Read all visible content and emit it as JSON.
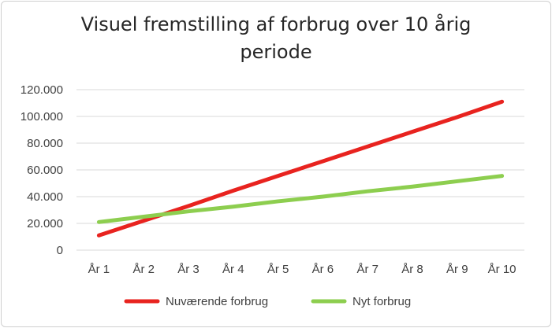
{
  "chart_data": {
    "type": "line",
    "title_line1": "Visuel fremstilling af forbrug over 10 årig",
    "title_line2": "periode",
    "categories": [
      "År 1",
      "År 2",
      "År 3",
      "År 4",
      "År 5",
      "År 6",
      "År 7",
      "År 8",
      "År 9",
      "År 10"
    ],
    "y_ticks": [
      0,
      20000,
      40000,
      60000,
      80000,
      100000,
      120000
    ],
    "y_tick_labels": [
      "0",
      "20.000",
      "40.000",
      "60.000",
      "80.000",
      "100.000",
      "120.000"
    ],
    "ylim": [
      0,
      120000
    ],
    "grid": "horizontal",
    "legend_position": "bottom",
    "series": [
      {
        "name": "Nuværende forbrug",
        "color": "#e8231f",
        "values": [
          11000,
          22000,
          33000,
          44500,
          55500,
          66500,
          77500,
          88500,
          99500,
          111000
        ]
      },
      {
        "name": "Nyt forbrug",
        "color": "#8dce4f",
        "values": [
          21000,
          25000,
          29000,
          32500,
          36500,
          40000,
          44000,
          47500,
          51500,
          55500
        ]
      }
    ]
  }
}
